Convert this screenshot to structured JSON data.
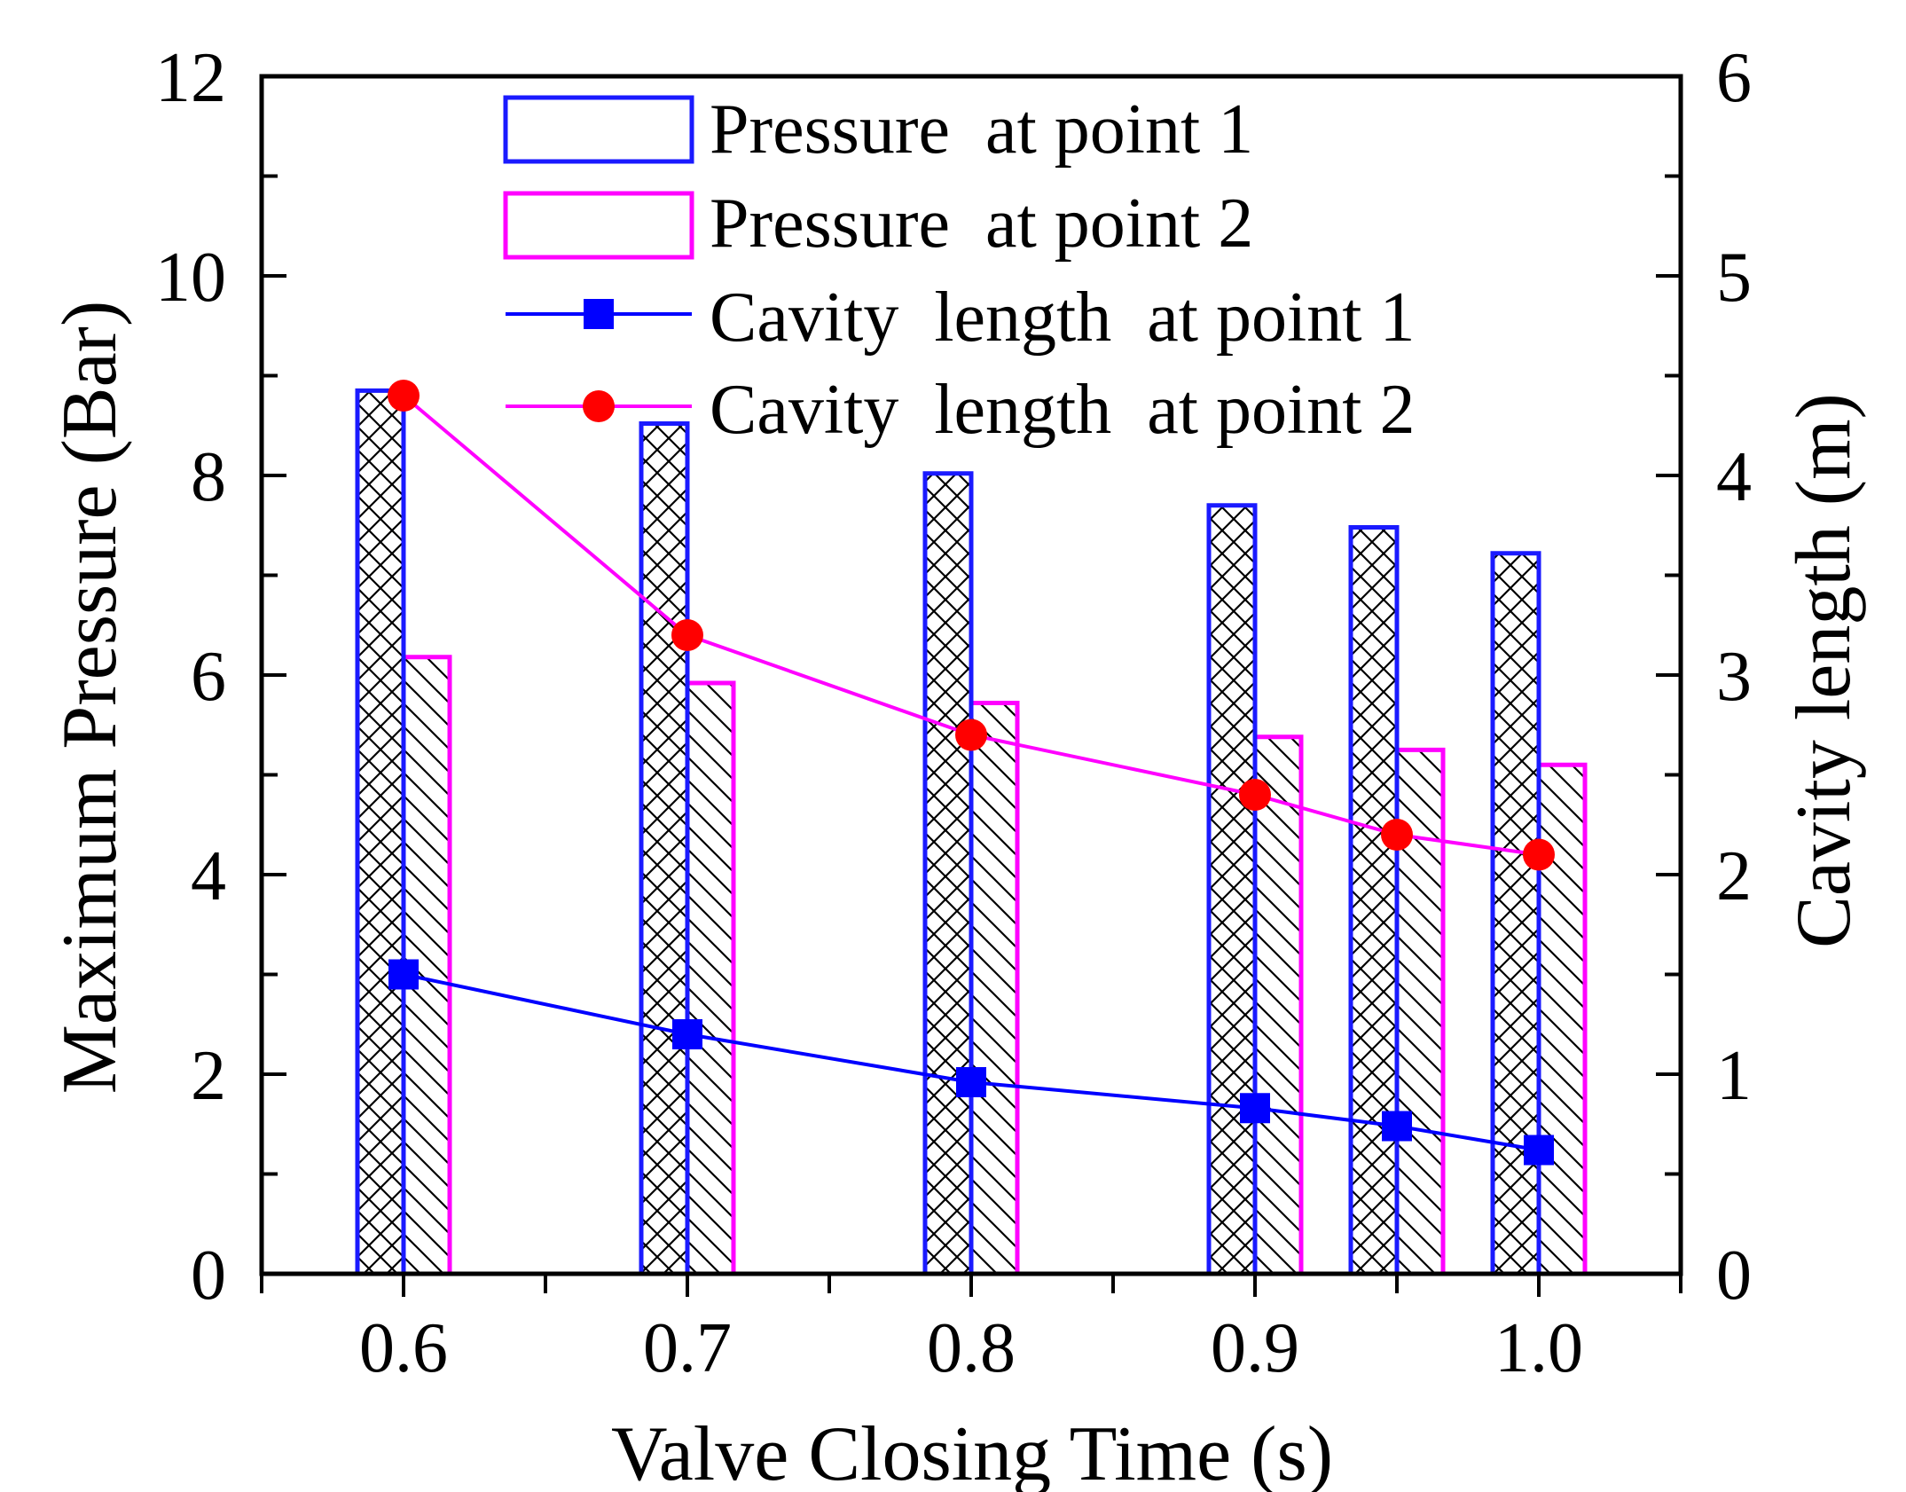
{
  "chart_data": {
    "type": "bar",
    "title": "",
    "xlabel": "Valve Closing  Time (s)",
    "ylabel": "Maximum Pressure (Bar)",
    "y2label": "Cavity  length (m)",
    "xlim": [
      0.55,
      1.05
    ],
    "ylim": [
      0,
      12
    ],
    "y2lim": [
      0,
      6
    ],
    "x_ticks": [
      "0.6",
      "0.7",
      "0.8",
      "0.9",
      "1.0"
    ],
    "y_ticks": [
      "0",
      "2",
      "4",
      "6",
      "8",
      "10",
      "12"
    ],
    "y2_ticks": [
      "0",
      "1",
      "2",
      "3",
      "4",
      "5",
      "6"
    ],
    "x": [
      0.6,
      0.7,
      0.8,
      0.9,
      0.95,
      1.0
    ],
    "series": [
      {
        "name": "Pressure  at point 1",
        "kind": "bar",
        "axis": "left",
        "color": "#1a1aff",
        "pattern": "crosshatch",
        "values": [
          8.85,
          8.52,
          8.02,
          7.7,
          7.48,
          7.22
        ]
      },
      {
        "name": "Pressure  at point 2",
        "kind": "bar",
        "axis": "left",
        "color": "#ff00ff",
        "pattern": "diagonal",
        "values": [
          6.18,
          5.92,
          5.72,
          5.38,
          5.25,
          5.1
        ]
      },
      {
        "name": "Cavity  length  at point 1",
        "kind": "line",
        "axis": "right",
        "color": "#0000ff",
        "marker": "square",
        "values": [
          1.5,
          1.2,
          0.96,
          0.83,
          0.74,
          0.62
        ]
      },
      {
        "name": "Cavity  length  at point 2",
        "kind": "line",
        "axis": "right",
        "color": "#ff00ff",
        "marker_color": "#ff0000",
        "marker": "circle",
        "values": [
          4.4,
          3.2,
          2.7,
          2.4,
          2.2,
          2.1
        ]
      }
    ],
    "legend_position": "top-center",
    "grid": false
  }
}
